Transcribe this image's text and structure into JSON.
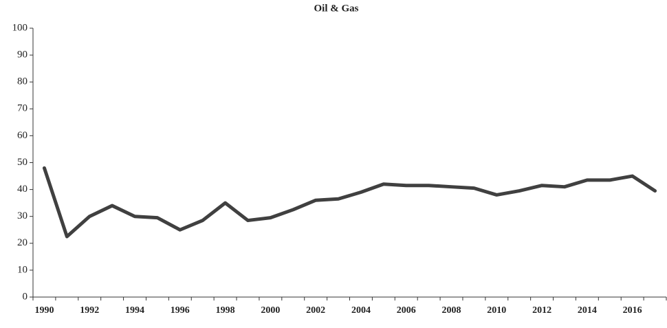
{
  "chart_data": {
    "type": "line",
    "title": "Oil & Gas",
    "categories": [
      "1990",
      null,
      "1992",
      null,
      "1994",
      null,
      "1996",
      null,
      "1998",
      null,
      "2000",
      null,
      "2002",
      null,
      "2004",
      null,
      "2006",
      null,
      "2008",
      null,
      "2010",
      null,
      "2012",
      null,
      "2014",
      null,
      "2016",
      null
    ],
    "series": [
      {
        "name": "Oil & Gas",
        "color": "#404040",
        "values": [
          48,
          22.5,
          30,
          34,
          30,
          29.5,
          25,
          28.5,
          35,
          28.5,
          29.5,
          32.5,
          36,
          36.5,
          39,
          42,
          41.5,
          41.5,
          41,
          40.5,
          38,
          39.5,
          41.5,
          41,
          43.5,
          43.5,
          45,
          39.5
        ]
      }
    ],
    "ylim": [
      0,
      100
    ],
    "yticks": [
      0,
      10,
      20,
      30,
      40,
      50,
      60,
      70,
      80,
      90,
      100
    ],
    "grid": false
  }
}
